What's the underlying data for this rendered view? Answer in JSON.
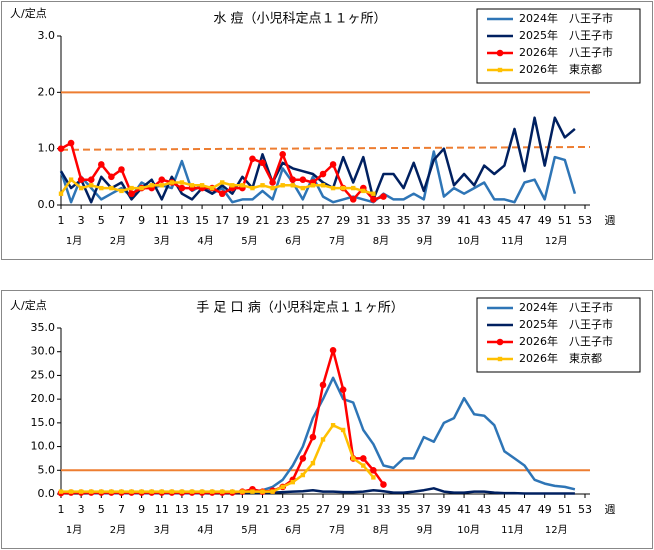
{
  "chart_data": [
    {
      "type": "line",
      "title": "水 痘（小児科定点１１ヶ所）",
      "y_label": "人/定点",
      "x_label": "週",
      "x": [
        1,
        2,
        3,
        4,
        5,
        6,
        7,
        8,
        9,
        10,
        11,
        12,
        13,
        14,
        15,
        16,
        17,
        18,
        19,
        20,
        21,
        22,
        23,
        24,
        25,
        26,
        27,
        28,
        29,
        30,
        31,
        32,
        33,
        34,
        35,
        36,
        37,
        38,
        39,
        40,
        41,
        42,
        43,
        44,
        45,
        46,
        47,
        48,
        49,
        50,
        51,
        52,
        53
      ],
      "xlim": [
        1,
        53
      ],
      "xticks": [
        1,
        3,
        5,
        7,
        9,
        11,
        13,
        15,
        17,
        19,
        21,
        23,
        25,
        27,
        29,
        31,
        33,
        35,
        37,
        39,
        41,
        43,
        45,
        47,
        49,
        51,
        53
      ],
      "month_labels": [
        "1月",
        "2月",
        "3月",
        "4月",
        "5月",
        "6月",
        "7月",
        "8月",
        "9月",
        "10月",
        "11月",
        "12月"
      ],
      "ylim": [
        0,
        3
      ],
      "yticks": [
        {
          "value": 0,
          "label": "0.0"
        },
        {
          "value": 1,
          "label": "1.0"
        },
        {
          "value": 2,
          "label": "2.0"
        },
        {
          "value": 3,
          "label": "3.0"
        }
      ],
      "grid": false,
      "legend": "top-right",
      "reference_lines": [
        {
          "values": [
            2.0,
            2.0
          ],
          "dashed": false,
          "color": "#ed7d31"
        },
        {
          "values": [
            0.98,
            1.03
          ],
          "dashed": true,
          "color": "#ed7d31"
        }
      ],
      "series": [
        {
          "name": "2024年　八王子市",
          "color": "#2e75b6",
          "marker": null,
          "values": [
            0.6,
            0.05,
            0.5,
            0.3,
            0.1,
            0.2,
            0.3,
            0.15,
            0.4,
            0.3,
            0.35,
            0.3,
            0.78,
            0.25,
            0.35,
            0.2,
            0.3,
            0.05,
            0.1,
            0.1,
            0.25,
            0.1,
            0.65,
            0.4,
            0.1,
            0.5,
            0.15,
            0.05,
            0.1,
            0.15,
            0.1,
            0.05,
            0.2,
            0.1,
            0.1,
            0.2,
            0.1,
            0.95,
            0.15,
            0.3,
            0.2,
            0.3,
            0.4,
            0.1,
            0.1,
            0.05,
            0.4,
            0.45,
            0.1,
            0.85,
            0.8,
            0.2,
            null
          ]
        },
        {
          "name": "2025年　八王子市",
          "color": "#002060",
          "marker": null,
          "values": [
            0.6,
            0.3,
            0.45,
            0.05,
            0.5,
            0.3,
            0.4,
            0.1,
            0.3,
            0.45,
            0.1,
            0.5,
            0.2,
            0.1,
            0.3,
            0.2,
            0.35,
            0.2,
            0.5,
            0.3,
            0.9,
            0.4,
            0.75,
            0.65,
            0.6,
            0.55,
            0.4,
            0.3,
            0.85,
            0.4,
            0.85,
            0.1,
            0.55,
            0.55,
            0.3,
            0.75,
            0.25,
            0.8,
            1.0,
            0.35,
            0.55,
            0.35,
            0.7,
            0.55,
            0.7,
            1.35,
            0.6,
            1.55,
            0.7,
            1.55,
            1.2,
            1.35,
            null
          ]
        },
        {
          "name": "2026年　八王子市",
          "color": "#ff0000",
          "marker": "circle",
          "values": [
            1.0,
            1.1,
            0.45,
            0.45,
            0.72,
            0.5,
            0.63,
            0.2,
            0.3,
            0.3,
            0.45,
            0.4,
            0.3,
            0.3,
            0.3,
            0.3,
            0.2,
            0.3,
            0.3,
            0.82,
            0.75,
            0.4,
            0.9,
            0.45,
            0.45,
            0.4,
            0.55,
            0.72,
            0.3,
            0.1,
            0.3,
            0.1,
            0.15,
            null,
            null,
            null,
            null,
            null,
            null,
            null,
            null,
            null,
            null,
            null,
            null,
            null,
            null,
            null,
            null,
            null,
            null,
            null,
            null
          ]
        },
        {
          "name": "2026年　東京都",
          "color": "#ffc000",
          "marker": "square",
          "values": [
            0.2,
            0.45,
            0.3,
            0.35,
            0.3,
            0.3,
            0.25,
            0.3,
            0.3,
            0.35,
            0.35,
            0.4,
            0.4,
            0.35,
            0.35,
            0.3,
            0.4,
            0.35,
            0.35,
            0.3,
            0.35,
            0.3,
            0.35,
            0.35,
            0.3,
            0.35,
            0.35,
            0.3,
            0.3,
            0.3,
            0.25,
            0.2,
            null,
            null,
            null,
            null,
            null,
            null,
            null,
            null,
            null,
            null,
            null,
            null,
            null,
            null,
            null,
            null,
            null,
            null,
            null,
            null,
            null
          ]
        }
      ]
    },
    {
      "type": "line",
      "title": "手 足 口 病（小児科定点１１ヶ所）",
      "y_label": "人/定点",
      "x_label": "週",
      "x": [
        1,
        2,
        3,
        4,
        5,
        6,
        7,
        8,
        9,
        10,
        11,
        12,
        13,
        14,
        15,
        16,
        17,
        18,
        19,
        20,
        21,
        22,
        23,
        24,
        25,
        26,
        27,
        28,
        29,
        30,
        31,
        32,
        33,
        34,
        35,
        36,
        37,
        38,
        39,
        40,
        41,
        42,
        43,
        44,
        45,
        46,
        47,
        48,
        49,
        50,
        51,
        52,
        53
      ],
      "xlim": [
        1,
        53
      ],
      "xticks": [
        1,
        3,
        5,
        7,
        9,
        11,
        13,
        15,
        17,
        19,
        21,
        23,
        25,
        27,
        29,
        31,
        33,
        35,
        37,
        39,
        41,
        43,
        45,
        47,
        49,
        51,
        53
      ],
      "month_labels": [
        "1月",
        "2月",
        "3月",
        "4月",
        "5月",
        "6月",
        "7月",
        "8月",
        "9月",
        "10月",
        "11月",
        "12月"
      ],
      "ylim": [
        0,
        35
      ],
      "yticks": [
        {
          "value": 0,
          "label": "0.0"
        },
        {
          "value": 5,
          "label": "5.0"
        },
        {
          "value": 10,
          "label": "10.0"
        },
        {
          "value": 15,
          "label": "15.0"
        },
        {
          "value": 20,
          "label": "20.0"
        },
        {
          "value": 25,
          "label": "25.0"
        },
        {
          "value": 30,
          "label": "30.0"
        },
        {
          "value": 35,
          "label": "35.0"
        }
      ],
      "grid": false,
      "legend": "top-right",
      "reference_lines": [
        {
          "values": [
            5.0,
            5.0
          ],
          "dashed": false,
          "color": "#ed7d31"
        }
      ],
      "series": [
        {
          "name": "2024年　八王子市",
          "color": "#2e75b6",
          "marker": null,
          "values": [
            0.3,
            0.3,
            0.3,
            0.2,
            0.2,
            0.2,
            0.2,
            0.2,
            0.2,
            0.2,
            0.2,
            0.2,
            0.2,
            0.2,
            0.2,
            0.3,
            0.3,
            0.3,
            0.4,
            0.5,
            0.8,
            1.5,
            3,
            6,
            10,
            16,
            20,
            24.5,
            20,
            19.3,
            13.5,
            10.5,
            6,
            5.5,
            7.5,
            7.5,
            12,
            11,
            15,
            16,
            20.2,
            16.8,
            16.5,
            14.5,
            9,
            7.5,
            6,
            3,
            2.2,
            1.7,
            1.5,
            1.0,
            null
          ]
        },
        {
          "name": "2025年　八王子市",
          "color": "#002060",
          "marker": null,
          "values": [
            0.3,
            0.3,
            0.3,
            0.3,
            0.3,
            0.3,
            0.3,
            0.3,
            0.3,
            0.3,
            0.3,
            0.3,
            0.3,
            0.3,
            0.3,
            0.3,
            0.3,
            0.3,
            0.3,
            0.3,
            0.3,
            0.3,
            0.4,
            0.5,
            0.6,
            0.8,
            0.5,
            0.5,
            0.4,
            0.4,
            0.5,
            0.8,
            0.6,
            0.3,
            0.3,
            0.5,
            0.8,
            1.2,
            0.5,
            0.3,
            0.3,
            0.5,
            0.5,
            0.3,
            0.2,
            0.2,
            0.1,
            0.1,
            0.1,
            0.1,
            0.1,
            0.1,
            null
          ]
        },
        {
          "name": "2026年　八王子市",
          "color": "#ff0000",
          "marker": "circle",
          "values": [
            0.2,
            0.3,
            0.3,
            0.3,
            0.3,
            0.3,
            0.3,
            0.3,
            0.3,
            0.3,
            0.3,
            0.3,
            0.3,
            0.3,
            0.3,
            0.3,
            0.3,
            0.3,
            0.5,
            1.0,
            0.5,
            0.7,
            1.5,
            3,
            7.5,
            12,
            23,
            30.3,
            22,
            7.5,
            7.5,
            5,
            2,
            null,
            null,
            null,
            null,
            null,
            null,
            null,
            null,
            null,
            null,
            null,
            null,
            null,
            null,
            null,
            null,
            null,
            null,
            null,
            null
          ]
        },
        {
          "name": "2026年　東京都",
          "color": "#ffc000",
          "marker": "square",
          "values": [
            0.5,
            0.5,
            0.5,
            0.5,
            0.5,
            0.5,
            0.5,
            0.5,
            0.5,
            0.5,
            0.5,
            0.5,
            0.5,
            0.5,
            0.5,
            0.5,
            0.5,
            0.5,
            0.5,
            0.5,
            0.5,
            0.5,
            1.5,
            2.5,
            4,
            6.5,
            11.5,
            14.5,
            13.5,
            7.5,
            6,
            3.5,
            null,
            null,
            null,
            null,
            null,
            null,
            null,
            null,
            null,
            null,
            null,
            null,
            null,
            null,
            null,
            null,
            null,
            null,
            null,
            null,
            null
          ]
        }
      ]
    }
  ]
}
